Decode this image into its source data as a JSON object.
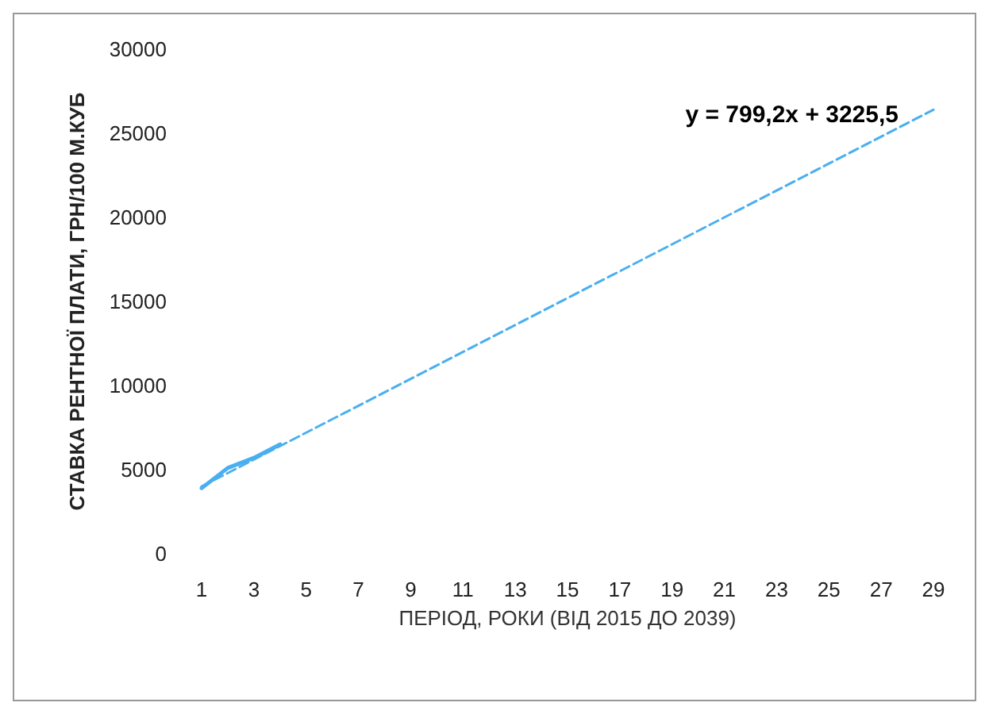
{
  "chart_data": {
    "type": "line",
    "xlabel": "ПЕРІОД, РОКИ (ВІД 2015 ДО 2039)",
    "ylabel": "СТАВКА РЕНТНОЇ ПЛАТИ, ГРН/100 М.КУБ",
    "series": [
      {
        "color": "#4aaff0",
        "x": [
          1,
          2,
          3,
          4
        ],
        "values": [
          3900,
          5100,
          5700,
          6500
        ],
        "line_style": "solid"
      },
      {
        "type": "line",
        "color": "#4aaff0",
        "x": [
          1,
          29
        ],
        "values": [
          4000,
          26400
        ],
        "line_style": "dashed"
      }
    ],
    "annotations": [
      "y = 799,2x + 3225,5"
    ],
    "xlim": [
      1,
      29
    ],
    "xticks": [
      1,
      3,
      5,
      7,
      9,
      11,
      13,
      15,
      17,
      19,
      21,
      23,
      25,
      27,
      29
    ],
    "ylim": [
      0,
      30000
    ],
    "yticks": [
      0,
      5000,
      10000,
      15000,
      20000,
      25000,
      30000
    ],
    "grid": false,
    "marker": "none"
  }
}
